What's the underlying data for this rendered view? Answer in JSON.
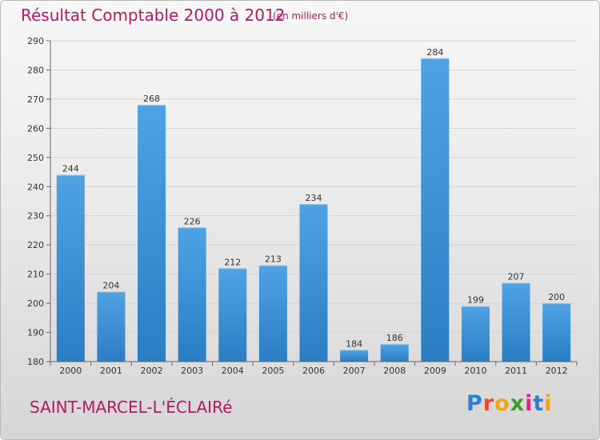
{
  "header": {
    "title": "Résultat Comptable 2000 à 2012",
    "subtitle": "(en milliers d'€)"
  },
  "footer": {
    "place": "SAINT-MARCEL-L'ÉCLAIRé",
    "brand_letters": [
      "P",
      "r",
      "o",
      "x",
      "i",
      "t",
      "i"
    ],
    "brand_colors": [
      "#2f7fd0",
      "#e64a2e",
      "#f2a51c",
      "#3c9b2c",
      "#d8287f",
      "#2f7fd0",
      "#f2a51c"
    ]
  },
  "chart_data": {
    "type": "bar",
    "title": "Résultat Comptable 2000 à 2012",
    "subtitle": "(en milliers d'€)",
    "categories": [
      "2000",
      "2001",
      "2002",
      "2003",
      "2004",
      "2005",
      "2006",
      "2007",
      "2008",
      "2009",
      "2010",
      "2011",
      "2012"
    ],
    "values": [
      244,
      204,
      268,
      226,
      212,
      213,
      234,
      184,
      186,
      284,
      199,
      207,
      200
    ],
    "yticks": [
      180,
      190,
      200,
      210,
      220,
      230,
      240,
      250,
      260,
      270,
      280,
      290
    ],
    "ylim": [
      180,
      290
    ],
    "grid": true,
    "bar_color": "#4fa3e3",
    "bar_color_dark": "#2b7dc4",
    "xlabel": "",
    "ylabel": ""
  }
}
